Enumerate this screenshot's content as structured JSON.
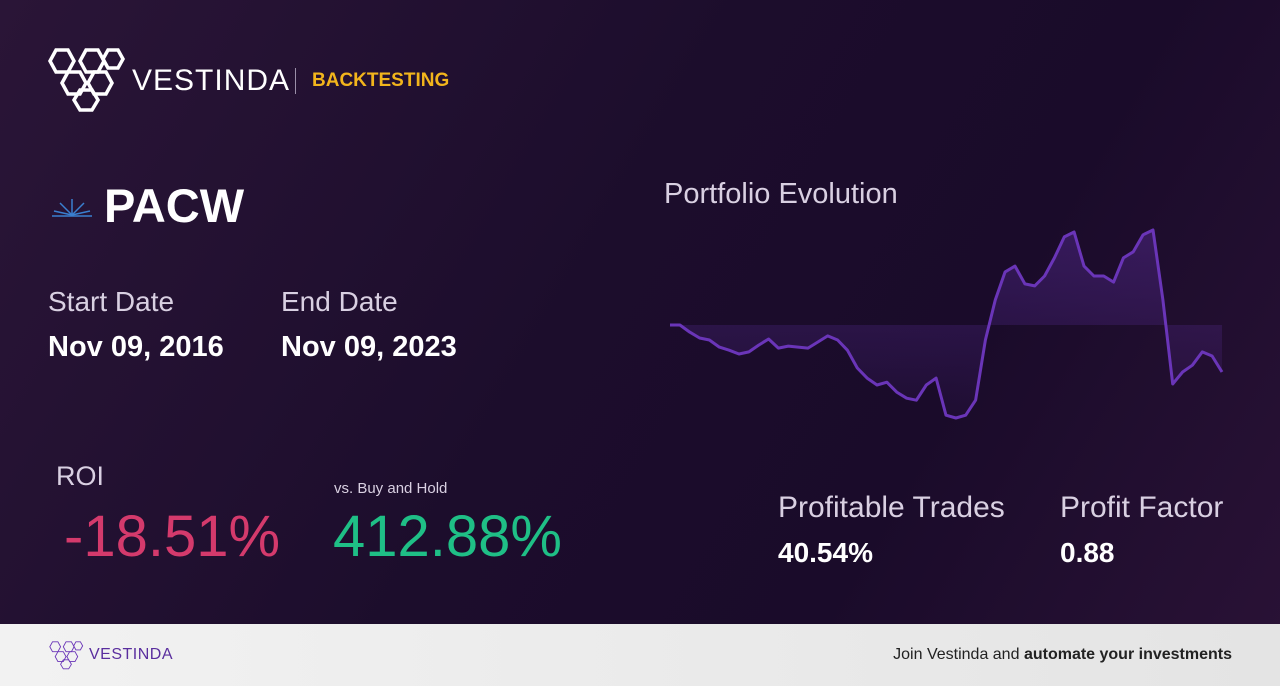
{
  "header": {
    "brand": "VESTINDA",
    "section": "BACKTESTING"
  },
  "asset": {
    "ticker": "PACW",
    "start_label": "Start Date",
    "start_date": "Nov 09, 2016",
    "end_label": "End Date",
    "end_date": "Nov 09, 2023"
  },
  "metrics": {
    "roi_label": "ROI",
    "roi": "-18.51%",
    "benchmark_label": "vs. Buy and Hold",
    "benchmark": "412.88%",
    "trades_label": "Profitable Trades",
    "trades": "40.54%",
    "factor_label": "Profit Factor",
    "factor": "0.88"
  },
  "chart_data": {
    "type": "line",
    "title": "Portfolio Evolution",
    "color": "#6a35b8",
    "values": [
      0,
      0,
      -2.8,
      -5.1,
      -5.9,
      -8.7,
      -9.9,
      -11.4,
      -10.6,
      -7.9,
      -5.5,
      -9.1,
      -8.3,
      -8.7,
      -9.1,
      -6.7,
      -4.3,
      -5.9,
      -9.9,
      -16.9,
      -20.9,
      -23.6,
      -22.5,
      -26.4,
      -28.8,
      -29.6,
      -23.6,
      -20.9,
      -35.5,
      -36.6,
      -35.5,
      -29.6,
      -5.9,
      9.9,
      20.9,
      23.2,
      16.2,
      15.4,
      19.3,
      26.4,
      34.7,
      36.6,
      23.2,
      19.3,
      19.3,
      16.9,
      26.4,
      28.8,
      35.5,
      37.4,
      9.9,
      -23.2,
      -18.5,
      -15.8,
      -10.6,
      -12.2,
      -18.51
    ]
  },
  "footer": {
    "brand": "VESTINDA",
    "cta": "Join Vestinda and",
    "cta_bold": "automate your investments"
  }
}
